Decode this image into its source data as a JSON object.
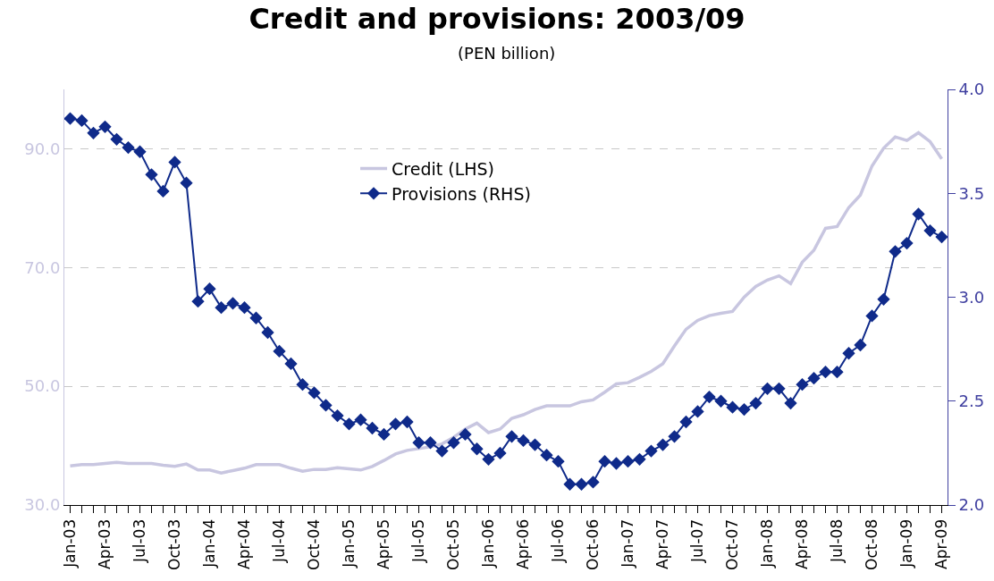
{
  "chart_data": {
    "type": "line",
    "title": "Credit and provisions: 2003/09",
    "subtitle": "(PEN billion)",
    "categories": [
      "Jan-03",
      null,
      null,
      "Apr-03",
      null,
      null,
      "Jul-03",
      null,
      null,
      "Oct-03",
      null,
      null,
      "Jan-04",
      null,
      null,
      "Apr-04",
      null,
      null,
      "Jul-04",
      null,
      null,
      "Oct-04",
      null,
      null,
      "Jan-05",
      null,
      null,
      "Apr-05",
      null,
      null,
      "Jul-05",
      null,
      null,
      "Oct-05",
      null,
      null,
      "Jan-06",
      null,
      null,
      "Apr-06",
      null,
      null,
      "Jul-06",
      null,
      null,
      "Oct-06",
      null,
      null,
      "Jan-07",
      null,
      null,
      "Apr-07",
      null,
      null,
      "Jul-07",
      null,
      null,
      "Oct-07",
      null,
      null,
      "Jan-08",
      null,
      null,
      "Apr-08",
      null,
      null,
      "Jul-08",
      null,
      null,
      "Oct-08",
      null,
      null,
      "Jan-09",
      null,
      null,
      "Apr-09"
    ],
    "series": [
      {
        "name": "Credit (LHS)",
        "color": "#c8c6e0",
        "marker": "none",
        "values": [
          36.6,
          36.8,
          36.8,
          37.0,
          37.2,
          37.0,
          37.0,
          37.0,
          36.7,
          36.5,
          36.9,
          35.9,
          35.9,
          35.4,
          35.8,
          36.2,
          36.8,
          36.8,
          36.8,
          36.2,
          35.7,
          36.0,
          36.0,
          36.3,
          36.1,
          35.9,
          36.5,
          37.5,
          38.6,
          39.2,
          39.5,
          39.8,
          40.3,
          41.4,
          42.8,
          43.8,
          42.2,
          42.8,
          44.6,
          45.2,
          46.1,
          46.7,
          46.7,
          46.7,
          47.4,
          47.7,
          49.0,
          50.4,
          50.6,
          51.5,
          52.5,
          53.8,
          56.8,
          59.6,
          61.1,
          61.9,
          62.3,
          62.6,
          65.0,
          66.8,
          67.9,
          68.6,
          67.3,
          70.9,
          72.9,
          76.6,
          76.9,
          80.1,
          82.2,
          87.1,
          90.1,
          92.0,
          91.4,
          92.7,
          91.2,
          88.3
        ]
      },
      {
        "name": "Provisions (RHS)",
        "color": "#0f2a8a",
        "marker": "diamond",
        "axis": "y2",
        "values": [
          3.86,
          3.85,
          3.79,
          3.82,
          3.76,
          3.72,
          3.7,
          3.59,
          3.51,
          3.65,
          3.55,
          2.98,
          3.04,
          2.95,
          2.97,
          2.95,
          2.9,
          2.83,
          2.74,
          2.68,
          2.58,
          2.54,
          2.48,
          2.43,
          2.39,
          2.41,
          2.37,
          2.34,
          2.39,
          2.4,
          2.3,
          2.3,
          2.26,
          2.3,
          2.34,
          2.27,
          2.22,
          2.25,
          2.33,
          2.31,
          2.29,
          2.24,
          2.21,
          2.1,
          2.1,
          2.11,
          2.21,
          2.2,
          2.21,
          2.22,
          2.26,
          2.29,
          2.33,
          2.4,
          2.45,
          2.52,
          2.5,
          2.47,
          2.46,
          2.49,
          2.56,
          2.56,
          2.49,
          2.58,
          2.61,
          2.64,
          2.64,
          2.73,
          2.77,
          2.91,
          2.99,
          3.22,
          3.26,
          3.4,
          3.32,
          3.29
        ]
      }
    ],
    "ylim": [
      30,
      100
    ],
    "yticks": [
      {
        "value": 30,
        "label": "30.0"
      },
      {
        "value": 50,
        "label": "50.0"
      },
      {
        "value": 70,
        "label": "70.0"
      },
      {
        "value": 90,
        "label": "90.0"
      }
    ],
    "y2lim": [
      2,
      4
    ],
    "y2ticks": [
      {
        "value": 2,
        "label": "2.0"
      },
      {
        "value": 2.5,
        "label": "2.5"
      },
      {
        "value": 3,
        "label": "3.0"
      },
      {
        "value": 3.5,
        "label": "3.5"
      },
      {
        "value": 4,
        "label": "4.0"
      }
    ],
    "grid": "y",
    "legend": "top",
    "line_style": "solid"
  }
}
